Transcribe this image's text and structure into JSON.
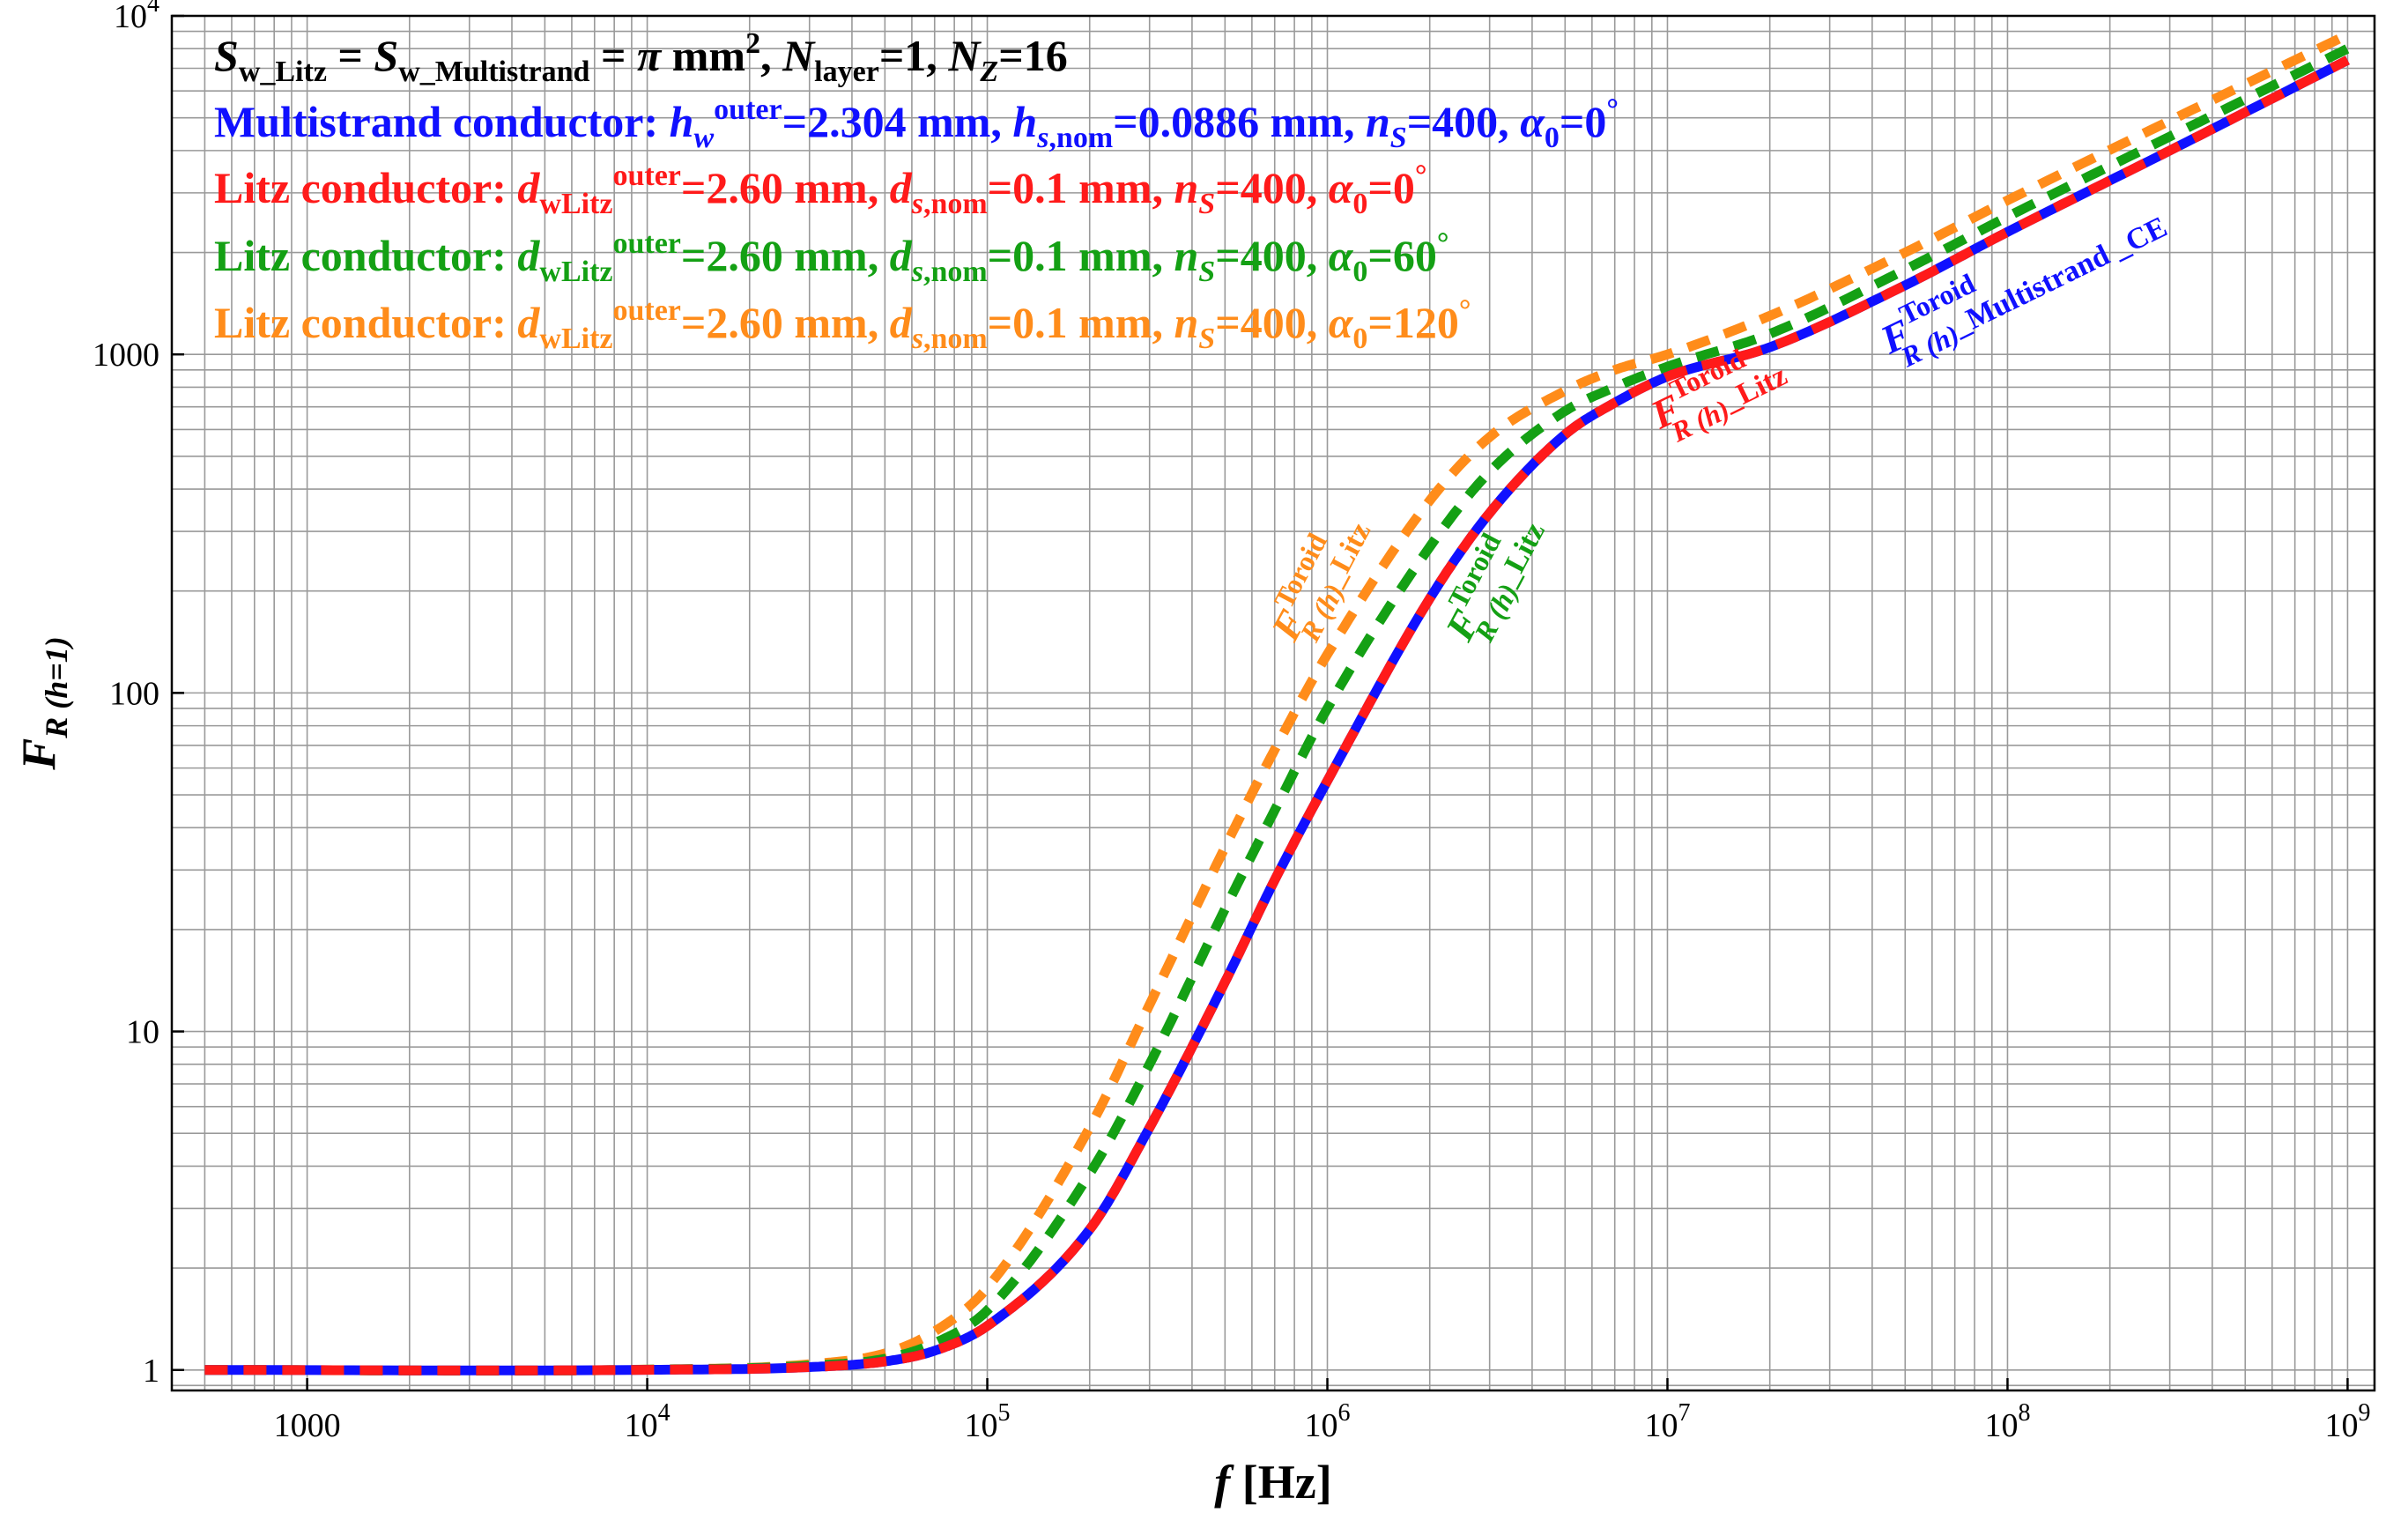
{
  "chart_data": {
    "type": "line",
    "xscale": "log",
    "yscale": "log",
    "xlim": [
      400,
      1200000000
    ],
    "ylim": [
      0.87,
      10000
    ],
    "xlabel": {
      "var": "f",
      "unit": " [Hz]"
    },
    "ylabel": {
      "main": "F",
      "sub": "R (h=1)"
    },
    "x_ticks": [
      {
        "value": 1000,
        "base": "1000",
        "exp": ""
      },
      {
        "value": 10000,
        "base": "10",
        "exp": "4"
      },
      {
        "value": 100000,
        "base": "10",
        "exp": "5"
      },
      {
        "value": 1000000,
        "base": "10",
        "exp": "6"
      },
      {
        "value": 10000000,
        "base": "10",
        "exp": "7"
      },
      {
        "value": 100000000,
        "base": "10",
        "exp": "8"
      },
      {
        "value": 1000000000,
        "base": "10",
        "exp": "9"
      }
    ],
    "y_ticks": [
      {
        "value": 1,
        "base": "1",
        "exp": ""
      },
      {
        "value": 10,
        "base": "10",
        "exp": ""
      },
      {
        "value": 100,
        "base": "100",
        "exp": ""
      },
      {
        "value": 1000,
        "base": "1000",
        "exp": ""
      },
      {
        "value": 10000,
        "base": "10",
        "exp": "4"
      }
    ],
    "series": [
      {
        "name": "Litz conductor, α0=120°",
        "color": "#ff8c1a",
        "style": "dashed",
        "x": [
          500,
          10000,
          30000,
          50000,
          70000,
          100000,
          200000,
          300000,
          500000,
          700000,
          1000000,
          2000000,
          3000000,
          5000000,
          7000000,
          10000000,
          20000000,
          50000000,
          100000000,
          300000000,
          1000000000
        ],
        "y": [
          1,
          1.003,
          1.04,
          1.12,
          1.3,
          1.75,
          5.2,
          12,
          35,
          68,
          130,
          370,
          570,
          780,
          900,
          1000,
          1300,
          2000,
          2850,
          4900,
          8800
        ]
      },
      {
        "name": "Litz conductor, α0=60°",
        "color": "#14a014",
        "style": "dashed",
        "x": [
          500,
          10000,
          30000,
          50000,
          70000,
          100000,
          200000,
          300000,
          500000,
          700000,
          1000000,
          2000000,
          3000000,
          5000000,
          7000000,
          10000000,
          20000000,
          50000000,
          100000000,
          300000000,
          1000000000
        ],
        "y": [
          1,
          1.002,
          1.03,
          1.08,
          1.2,
          1.5,
          3.8,
          8,
          23,
          45,
          90,
          270,
          450,
          680,
          800,
          920,
          1150,
          1780,
          2550,
          4400,
          8000
        ]
      },
      {
        "name": "Multistrand conductor, α0=0°",
        "color": "#1010ff",
        "style": "solid",
        "x": [
          500,
          10000,
          30000,
          50000,
          70000,
          100000,
          200000,
          300000,
          500000,
          700000,
          1000000,
          2000000,
          3000000,
          5000000,
          7000000,
          10000000,
          20000000,
          50000000,
          100000000,
          300000000,
          1000000000
        ],
        "y": [
          1,
          1.001,
          1.02,
          1.06,
          1.14,
          1.35,
          2.6,
          5.2,
          14,
          28,
          55,
          190,
          340,
          580,
          720,
          860,
          1050,
          1600,
          2300,
          4000,
          7400
        ]
      },
      {
        "name": "Litz conductor, α0=0°",
        "color": "#ff1a1a",
        "style": "dashed",
        "x": [
          500,
          10000,
          30000,
          50000,
          70000,
          100000,
          200000,
          300000,
          500000,
          700000,
          1000000,
          2000000,
          3000000,
          5000000,
          7000000,
          10000000,
          20000000,
          50000000,
          100000000,
          300000000,
          1000000000
        ],
        "y": [
          1,
          1.001,
          1.02,
          1.06,
          1.14,
          1.35,
          2.6,
          5.2,
          14,
          28,
          55,
          190,
          340,
          580,
          720,
          860,
          1050,
          1600,
          2300,
          4000,
          7400
        ]
      }
    ],
    "legend": [
      {
        "color": "#000000",
        "segments": [
          {
            "t": "S",
            "i": true
          },
          {
            "t": "w_Litz",
            "s": "sub"
          },
          {
            "t": " = "
          },
          {
            "t": "S",
            "i": true
          },
          {
            "t": "w_Multistrand",
            "s": "sub"
          },
          {
            "t": " = "
          },
          {
            "t": "π",
            "i": true
          },
          {
            "t": " mm"
          },
          {
            "t": "2",
            "s": "sup"
          },
          {
            "t": ", "
          },
          {
            "t": "N",
            "i": true
          },
          {
            "t": "layer",
            "s": "sub"
          },
          {
            "t": "=1, "
          },
          {
            "t": "N",
            "i": true
          },
          {
            "t": "Z",
            "s": "sub",
            "i": true
          },
          {
            "t": "=16"
          }
        ]
      },
      {
        "color": "#1010ff",
        "segments": [
          {
            "t": "Multistrand conductor: "
          },
          {
            "t": "h",
            "i": true
          },
          {
            "t": "w",
            "s": "sub",
            "i": true
          },
          {
            "t": "outer",
            "s": "sup"
          },
          {
            "t": "=2.304 mm, "
          },
          {
            "t": "h",
            "i": true
          },
          {
            "t": "s",
            "s": "sub",
            "i": true
          },
          {
            "t": ",nom",
            "s": "sub"
          },
          {
            "t": "=0.0886 mm, "
          },
          {
            "t": "n",
            "i": true
          },
          {
            "t": "S",
            "s": "sub",
            "i": true
          },
          {
            "t": "=400, "
          },
          {
            "t": "α",
            "i": true
          },
          {
            "t": "0",
            "s": "sub"
          },
          {
            "t": "=0"
          },
          {
            "t": "°",
            "s": "sup"
          }
        ]
      },
      {
        "color": "#ff1a1a",
        "segments": [
          {
            "t": "Litz conductor: "
          },
          {
            "t": "d",
            "i": true
          },
          {
            "t": "wLitz",
            "s": "sub"
          },
          {
            "t": "outer",
            "s": "sup"
          },
          {
            "t": "=2.60 mm, "
          },
          {
            "t": "d",
            "i": true
          },
          {
            "t": "s",
            "s": "sub",
            "i": true
          },
          {
            "t": ",nom",
            "s": "sub"
          },
          {
            "t": "=0.1 mm, "
          },
          {
            "t": "n",
            "i": true
          },
          {
            "t": "S",
            "s": "sub",
            "i": true
          },
          {
            "t": "=400, "
          },
          {
            "t": "α",
            "i": true
          },
          {
            "t": "0",
            "s": "sub"
          },
          {
            "t": "=0"
          },
          {
            "t": "°",
            "s": "sup"
          }
        ]
      },
      {
        "color": "#14a014",
        "segments": [
          {
            "t": "Litz conductor: "
          },
          {
            "t": "d",
            "i": true
          },
          {
            "t": "wLitz",
            "s": "sub"
          },
          {
            "t": "outer",
            "s": "sup"
          },
          {
            "t": "=2.60 mm, "
          },
          {
            "t": "d",
            "i": true
          },
          {
            "t": "s",
            "s": "sub",
            "i": true
          },
          {
            "t": ",nom",
            "s": "sub"
          },
          {
            "t": "=0.1 mm, "
          },
          {
            "t": "n",
            "i": true
          },
          {
            "t": "S",
            "s": "sub",
            "i": true
          },
          {
            "t": "=400, "
          },
          {
            "t": "α",
            "i": true
          },
          {
            "t": "0",
            "s": "sub"
          },
          {
            "t": "=60"
          },
          {
            "t": "°",
            "s": "sup"
          }
        ]
      },
      {
        "color": "#ff8c1a",
        "segments": [
          {
            "t": "Litz conductor: "
          },
          {
            "t": "d",
            "i": true
          },
          {
            "t": "wLitz",
            "s": "sub"
          },
          {
            "t": "outer",
            "s": "sup"
          },
          {
            "t": "=2.60 mm, "
          },
          {
            "t": "d",
            "i": true
          },
          {
            "t": "s",
            "s": "sub",
            "i": true
          },
          {
            "t": ",nom",
            "s": "sub"
          },
          {
            "t": "=0.1 mm, "
          },
          {
            "t": "n",
            "i": true
          },
          {
            "t": "S",
            "s": "sub",
            "i": true
          },
          {
            "t": "=400, "
          },
          {
            "t": "α",
            "i": true
          },
          {
            "t": "0",
            "s": "sub"
          },
          {
            "t": "=120"
          },
          {
            "t": "°",
            "s": "sup"
          }
        ]
      }
    ],
    "annotations": [
      {
        "color": "#ff8c1a",
        "x": 800000,
        "y": 140,
        "angle": -62,
        "main": "F",
        "sup": "Toroid",
        "sub": "R (h)",
        "suffix": "_Litz"
      },
      {
        "color": "#14a014",
        "x": 2600000,
        "y": 140,
        "angle": -62,
        "main": "F",
        "sup": "Toroid",
        "sub": "R (h)",
        "suffix": "_Litz"
      },
      {
        "color": "#ff1a1a",
        "x": 9500000,
        "y": 600,
        "angle": -26,
        "main": "F",
        "sup": "Toroid",
        "sub": "R (h)",
        "suffix": "_Litz"
      },
      {
        "color": "#1010ff",
        "x": 45000000,
        "y": 1000,
        "angle": -26,
        "main": "F",
        "sup": "Toroid",
        "sub": "R (h)",
        "suffix": "_Multistrand _CE"
      }
    ]
  }
}
